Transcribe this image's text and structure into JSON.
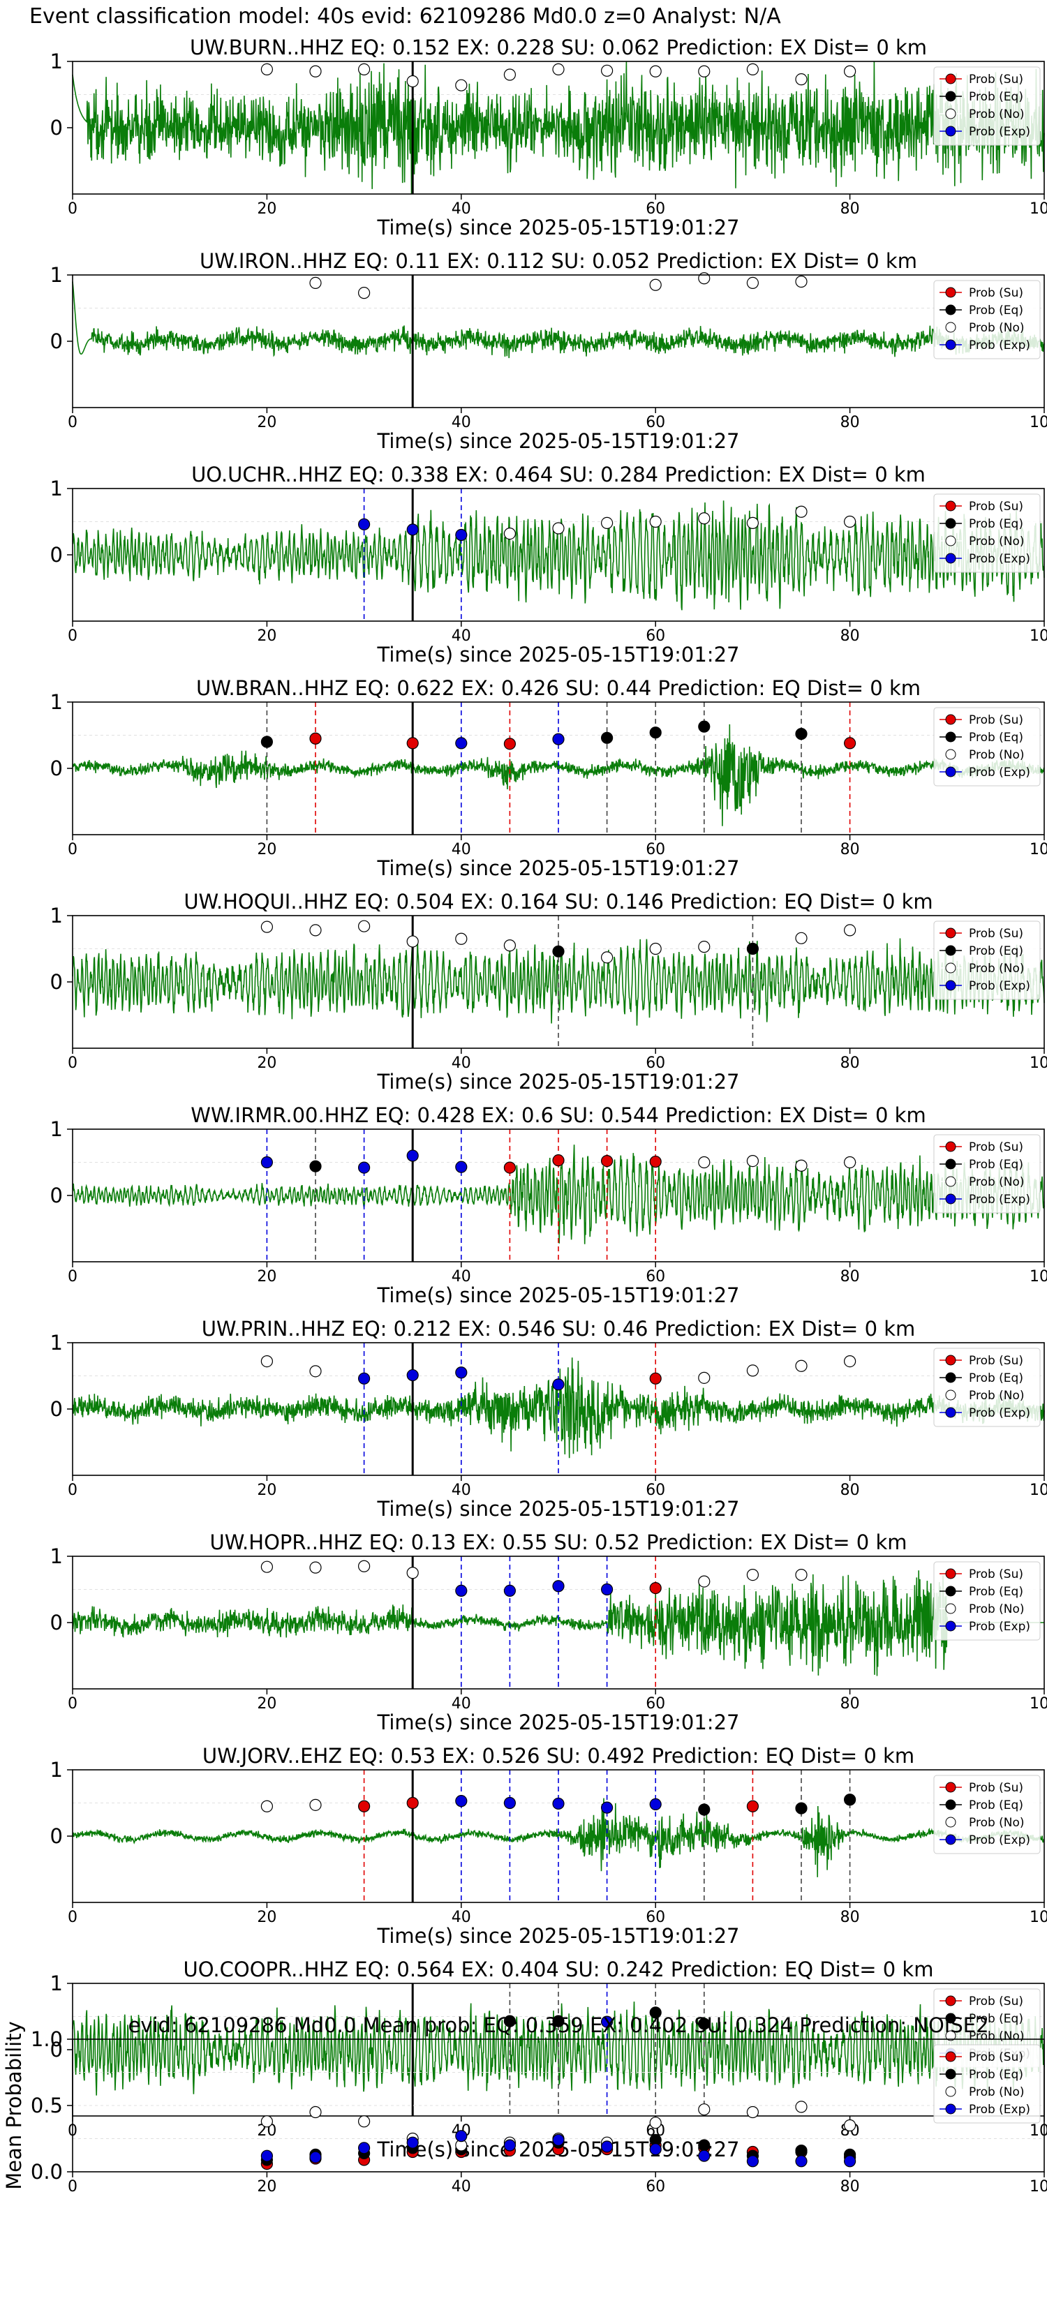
{
  "figure_title": "Event classification model: 40s evid: 62109286 Md0.0 z=0 Analyst: N/A",
  "x_axis_label": "Time(s) since 2025-05-15T19:01:27",
  "x_ticks": [
    0,
    20,
    40,
    60,
    80,
    100
  ],
  "legend": {
    "su": "Prob (Su)",
    "eq": "Prob (Eq)",
    "no": "Prob (No)",
    "exp": "Prob (Exp)"
  },
  "colors": {
    "su": "#e00000",
    "eq": "#000000",
    "no": "#ffffff",
    "exp": "#0000dd",
    "waveform": "#0a7d0a"
  },
  "chart_data": [
    {
      "type": "line",
      "title": "UW.BURN..HHZ   EQ: 0.152  EX: 0.228  SU: 0.062   Prediction: EX    Dist= 0 km",
      "xlabel": "Time(s) since 2025-05-15T19:01:27",
      "xlim": [
        0,
        100
      ],
      "ylim": [
        -1,
        1
      ],
      "yticks": [
        0,
        1
      ],
      "pick_time": 35,
      "waveform": {
        "style": "burn"
      },
      "points": [
        {
          "x": 20,
          "y": 0.88,
          "class": "no"
        },
        {
          "x": 25,
          "y": 0.85,
          "class": "no"
        },
        {
          "x": 30,
          "y": 0.88,
          "class": "no"
        },
        {
          "x": 35,
          "y": 0.7,
          "class": "no"
        },
        {
          "x": 40,
          "y": 0.64,
          "class": "no"
        },
        {
          "x": 45,
          "y": 0.8,
          "class": "no"
        },
        {
          "x": 50,
          "y": 0.88,
          "class": "no"
        },
        {
          "x": 55,
          "y": 0.86,
          "class": "no"
        },
        {
          "x": 60,
          "y": 0.85,
          "class": "no"
        },
        {
          "x": 65,
          "y": 0.85,
          "class": "no"
        },
        {
          "x": 70,
          "y": 0.88,
          "class": "no"
        },
        {
          "x": 75,
          "y": 0.73,
          "class": "no"
        },
        {
          "x": 80,
          "y": 0.85,
          "class": "no"
        }
      ]
    },
    {
      "type": "line",
      "title": "UW.IRON..HHZ   EQ: 0.11  EX: 0.112  SU: 0.052   Prediction: EX    Dist= 0 km",
      "xlabel": "Time(s) since 2025-05-15T19:01:27",
      "xlim": [
        0,
        100
      ],
      "ylim": [
        -1,
        1
      ],
      "yticks": [
        0,
        1
      ],
      "pick_time": 35,
      "waveform": {
        "style": "iron"
      },
      "points": [
        {
          "x": 25,
          "y": 0.88,
          "class": "no"
        },
        {
          "x": 30,
          "y": 0.73,
          "class": "no"
        },
        {
          "x": 60,
          "y": 0.85,
          "class": "no"
        },
        {
          "x": 65,
          "y": 0.95,
          "class": "no"
        },
        {
          "x": 70,
          "y": 0.88,
          "class": "no"
        },
        {
          "x": 75,
          "y": 0.9,
          "class": "no"
        }
      ]
    },
    {
      "type": "line",
      "title": "UO.UCHR..HHZ   EQ: 0.338  EX: 0.464  SU: 0.284   Prediction: EX    Dist= 0 km",
      "xlabel": "Time(s) since 2025-05-15T19:01:27",
      "xlim": [
        0,
        100
      ],
      "ylim": [
        -1,
        1
      ],
      "yticks": [
        0,
        1
      ],
      "pick_time": 35,
      "waveform": {
        "style": "uchr"
      },
      "points": [
        {
          "x": 30,
          "y": 0.46,
          "class": "exp"
        },
        {
          "x": 35,
          "y": 0.38,
          "class": "exp"
        },
        {
          "x": 40,
          "y": 0.3,
          "class": "exp"
        },
        {
          "x": 45,
          "y": 0.32,
          "class": "no"
        },
        {
          "x": 50,
          "y": 0.4,
          "class": "no"
        },
        {
          "x": 55,
          "y": 0.48,
          "class": "no"
        },
        {
          "x": 60,
          "y": 0.5,
          "class": "no"
        },
        {
          "x": 65,
          "y": 0.55,
          "class": "no"
        },
        {
          "x": 70,
          "y": 0.48,
          "class": "no"
        },
        {
          "x": 75,
          "y": 0.65,
          "class": "no"
        },
        {
          "x": 80,
          "y": 0.5,
          "class": "no"
        }
      ]
    },
    {
      "type": "line",
      "title": "UW.BRAN..HHZ   EQ: 0.622  EX: 0.426  SU: 0.44   Prediction: EQ    Dist= 0 km",
      "xlabel": "Time(s) since 2025-05-15T19:01:27",
      "xlim": [
        0,
        100
      ],
      "ylim": [
        -1,
        1
      ],
      "yticks": [
        0,
        1
      ],
      "pick_time": 35,
      "waveform": {
        "style": "bran"
      },
      "points": [
        {
          "x": 20,
          "y": 0.4,
          "class": "eq"
        },
        {
          "x": 25,
          "y": 0.45,
          "class": "su"
        },
        {
          "x": 35,
          "y": 0.38,
          "class": "su"
        },
        {
          "x": 40,
          "y": 0.38,
          "class": "exp"
        },
        {
          "x": 45,
          "y": 0.37,
          "class": "su"
        },
        {
          "x": 50,
          "y": 0.44,
          "class": "exp"
        },
        {
          "x": 55,
          "y": 0.46,
          "class": "eq"
        },
        {
          "x": 60,
          "y": 0.54,
          "class": "eq"
        },
        {
          "x": 65,
          "y": 0.63,
          "class": "eq"
        },
        {
          "x": 75,
          "y": 0.52,
          "class": "eq"
        },
        {
          "x": 80,
          "y": 0.38,
          "class": "su"
        }
      ]
    },
    {
      "type": "line",
      "title": "UW.HOQUI..HHZ   EQ: 0.504  EX: 0.164  SU: 0.146   Prediction: EQ    Dist= 0 km",
      "xlabel": "Time(s) since 2025-05-15T19:01:27",
      "xlim": [
        0,
        100
      ],
      "ylim": [
        -1,
        1
      ],
      "yticks": [
        0,
        1
      ],
      "pick_time": 35,
      "waveform": {
        "style": "hoqui"
      },
      "points": [
        {
          "x": 20,
          "y": 0.83,
          "class": "no"
        },
        {
          "x": 25,
          "y": 0.78,
          "class": "no"
        },
        {
          "x": 30,
          "y": 0.84,
          "class": "no"
        },
        {
          "x": 35,
          "y": 0.61,
          "class": "no"
        },
        {
          "x": 40,
          "y": 0.65,
          "class": "no"
        },
        {
          "x": 45,
          "y": 0.55,
          "class": "no"
        },
        {
          "x": 50,
          "y": 0.46,
          "class": "eq"
        },
        {
          "x": 55,
          "y": 0.37,
          "class": "no"
        },
        {
          "x": 60,
          "y": 0.5,
          "class": "no"
        },
        {
          "x": 65,
          "y": 0.53,
          "class": "no"
        },
        {
          "x": 70,
          "y": 0.5,
          "class": "eq"
        },
        {
          "x": 75,
          "y": 0.66,
          "class": "no"
        },
        {
          "x": 80,
          "y": 0.78,
          "class": "no"
        }
      ]
    },
    {
      "type": "line",
      "title": "WW.IRMR.00.HHZ   EQ: 0.428  EX: 0.6  SU: 0.544   Prediction: EX    Dist= 0 km",
      "xlabel": "Time(s) since 2025-05-15T19:01:27",
      "xlim": [
        0,
        100
      ],
      "ylim": [
        -1,
        1
      ],
      "yticks": [
        0,
        1
      ],
      "pick_time": 35,
      "waveform": {
        "style": "irmr"
      },
      "points": [
        {
          "x": 20,
          "y": 0.5,
          "class": "exp"
        },
        {
          "x": 25,
          "y": 0.44,
          "class": "eq"
        },
        {
          "x": 30,
          "y": 0.42,
          "class": "exp"
        },
        {
          "x": 35,
          "y": 0.6,
          "class": "exp"
        },
        {
          "x": 40,
          "y": 0.43,
          "class": "exp"
        },
        {
          "x": 45,
          "y": 0.42,
          "class": "su"
        },
        {
          "x": 50,
          "y": 0.53,
          "class": "su"
        },
        {
          "x": 55,
          "y": 0.52,
          "class": "su"
        },
        {
          "x": 60,
          "y": 0.51,
          "class": "su"
        },
        {
          "x": 65,
          "y": 0.5,
          "class": "no"
        },
        {
          "x": 70,
          "y": 0.52,
          "class": "no"
        },
        {
          "x": 75,
          "y": 0.45,
          "class": "no"
        },
        {
          "x": 80,
          "y": 0.5,
          "class": "no"
        }
      ]
    },
    {
      "type": "line",
      "title": "UW.PRIN..HHZ   EQ: 0.212  EX: 0.546  SU: 0.46   Prediction: EX    Dist= 0 km",
      "xlabel": "Time(s) since 2025-05-15T19:01:27",
      "xlim": [
        0,
        100
      ],
      "ylim": [
        -1,
        1
      ],
      "yticks": [
        0,
        1
      ],
      "pick_time": 35,
      "waveform": {
        "style": "prin"
      },
      "points": [
        {
          "x": 20,
          "y": 0.72,
          "class": "no"
        },
        {
          "x": 25,
          "y": 0.57,
          "class": "no"
        },
        {
          "x": 30,
          "y": 0.46,
          "class": "exp"
        },
        {
          "x": 35,
          "y": 0.51,
          "class": "exp"
        },
        {
          "x": 40,
          "y": 0.55,
          "class": "exp"
        },
        {
          "x": 50,
          "y": 0.37,
          "class": "exp"
        },
        {
          "x": 60,
          "y": 0.46,
          "class": "su"
        },
        {
          "x": 65,
          "y": 0.47,
          "class": "no"
        },
        {
          "x": 70,
          "y": 0.58,
          "class": "no"
        },
        {
          "x": 75,
          "y": 0.65,
          "class": "no"
        },
        {
          "x": 80,
          "y": 0.72,
          "class": "no"
        }
      ]
    },
    {
      "type": "line",
      "title": "UW.HOPR..HHZ   EQ: 0.13  EX: 0.55  SU: 0.52   Prediction: EX    Dist= 0 km",
      "xlabel": "Time(s) since 2025-05-15T19:01:27",
      "xlim": [
        0,
        100
      ],
      "ylim": [
        -1,
        1
      ],
      "yticks": [
        0,
        1
      ],
      "pick_time": 35,
      "waveform": {
        "style": "hopr"
      },
      "points": [
        {
          "x": 20,
          "y": 0.84,
          "class": "no"
        },
        {
          "x": 25,
          "y": 0.83,
          "class": "no"
        },
        {
          "x": 30,
          "y": 0.85,
          "class": "no"
        },
        {
          "x": 35,
          "y": 0.75,
          "class": "no"
        },
        {
          "x": 40,
          "y": 0.48,
          "class": "exp"
        },
        {
          "x": 45,
          "y": 0.48,
          "class": "exp"
        },
        {
          "x": 50,
          "y": 0.55,
          "class": "exp"
        },
        {
          "x": 55,
          "y": 0.5,
          "class": "exp"
        },
        {
          "x": 60,
          "y": 0.52,
          "class": "su"
        },
        {
          "x": 65,
          "y": 0.62,
          "class": "no"
        },
        {
          "x": 70,
          "y": 0.72,
          "class": "no"
        },
        {
          "x": 75,
          "y": 0.72,
          "class": "no"
        }
      ]
    },
    {
      "type": "line",
      "title": "UW.JORV..EHZ   EQ: 0.53  EX: 0.526  SU: 0.492   Prediction: EQ    Dist= 0 km",
      "xlabel": "Time(s) since 2025-05-15T19:01:27",
      "xlim": [
        0,
        100
      ],
      "ylim": [
        -1,
        1
      ],
      "yticks": [
        0,
        1
      ],
      "pick_time": 35,
      "waveform": {
        "style": "jorv"
      },
      "points": [
        {
          "x": 20,
          "y": 0.45,
          "class": "no"
        },
        {
          "x": 25,
          "y": 0.47,
          "class": "no"
        },
        {
          "x": 30,
          "y": 0.45,
          "class": "su"
        },
        {
          "x": 35,
          "y": 0.5,
          "class": "su"
        },
        {
          "x": 40,
          "y": 0.53,
          "class": "exp"
        },
        {
          "x": 45,
          "y": 0.5,
          "class": "exp"
        },
        {
          "x": 50,
          "y": 0.49,
          "class": "exp"
        },
        {
          "x": 55,
          "y": 0.43,
          "class": "exp"
        },
        {
          "x": 60,
          "y": 0.48,
          "class": "exp"
        },
        {
          "x": 65,
          "y": 0.4,
          "class": "eq"
        },
        {
          "x": 70,
          "y": 0.45,
          "class": "su"
        },
        {
          "x": 75,
          "y": 0.42,
          "class": "eq"
        },
        {
          "x": 80,
          "y": 0.55,
          "class": "eq"
        }
      ]
    },
    {
      "type": "line",
      "title": "UO.COOPR..HHZ   EQ: 0.564  EX: 0.404  SU: 0.242   Prediction: EQ    Dist= 0 km",
      "xlabel": "Time(s) since 2025-05-15T19:01:27",
      "xlim": [
        0,
        100
      ],
      "ylim": [
        -1,
        1
      ],
      "yticks": [
        0,
        1
      ],
      "pick_time": 35,
      "waveform": {
        "style": "coopr"
      },
      "points": [
        {
          "x": 45,
          "y": 0.43,
          "class": "eq"
        },
        {
          "x": 50,
          "y": 0.43,
          "class": "eq"
        },
        {
          "x": 55,
          "y": 0.42,
          "class": "exp"
        },
        {
          "x": 60,
          "y": 0.56,
          "class": "eq"
        },
        {
          "x": 65,
          "y": 0.39,
          "class": "eq"
        }
      ]
    },
    {
      "type": "scatter",
      "title": "evid: 62109286  Md0.0   Mean prob:   EQ: 0.359  EX: 0.402  SU: 0.324   Prediction: NOISE2",
      "xlabel": "",
      "ylabel": "Mean Probability",
      "xlim": [
        0,
        100
      ],
      "ylim": [
        0,
        1
      ],
      "yticks": [
        0.0,
        0.5,
        1.0
      ],
      "x": [
        20,
        25,
        30,
        35,
        40,
        45,
        50,
        55,
        60,
        65,
        70,
        75,
        80
      ],
      "series": [
        {
          "name": "Prob (Su)",
          "class": "su",
          "values": [
            0.06,
            0.1,
            0.09,
            0.15,
            0.15,
            0.16,
            0.17,
            0.17,
            0.2,
            0.18,
            0.15,
            0.15,
            0.11
          ]
        },
        {
          "name": "Prob (Eq)",
          "class": "eq",
          "values": [
            0.09,
            0.13,
            0.14,
            0.18,
            0.17,
            0.2,
            0.22,
            0.2,
            0.24,
            0.2,
            0.12,
            0.16,
            0.13
          ]
        },
        {
          "name": "Prob (No)",
          "class": "no",
          "values": [
            0.38,
            0.45,
            0.38,
            0.25,
            0.2,
            0.22,
            0.25,
            0.22,
            0.37,
            0.47,
            0.45,
            0.49,
            0.35
          ]
        },
        {
          "name": "Prob (Exp)",
          "class": "exp",
          "values": [
            0.12,
            0.11,
            0.18,
            0.22,
            0.27,
            0.2,
            0.24,
            0.19,
            0.17,
            0.12,
            0.08,
            0.08,
            0.08
          ]
        }
      ]
    }
  ]
}
